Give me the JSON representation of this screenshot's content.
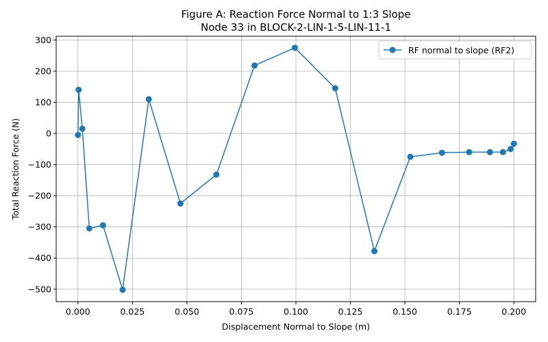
{
  "chart_data": {
    "type": "line",
    "title_line1": "Figure A: Reaction Force Normal to 1:3 Slope",
    "title_line2": "Node 33 in BLOCK-2-LIN-1-5-LIN-11-1",
    "xlabel": "Displacement Normal to Slope (m)",
    "ylabel": "Total Reaction Force (N)",
    "xlim": [
      -0.01,
      0.21
    ],
    "ylim": [
      -540,
      312
    ],
    "x_ticks": [
      0.0,
      0.025,
      0.05,
      0.075,
      0.1,
      0.125,
      0.15,
      0.175,
      0.2
    ],
    "x_tick_labels": [
      "0.000",
      "0.025",
      "0.050",
      "0.075",
      "0.100",
      "0.125",
      "0.150",
      "0.175",
      "0.200"
    ],
    "y_ticks": [
      -500,
      -400,
      -300,
      -200,
      -100,
      0,
      100,
      200,
      300
    ],
    "y_tick_labels": [
      "−500",
      "−400",
      "−300",
      "−200",
      "−100",
      "0",
      "100",
      "200",
      "300"
    ],
    "grid": true,
    "legend_position": "top-right",
    "color": "#1f77b4",
    "series": [
      {
        "name": "RF normal to slope (RF2)",
        "marker": "circle",
        "x": [
          0.0,
          0.0003,
          0.002,
          0.0052,
          0.0115,
          0.0205,
          0.0325,
          0.047,
          0.0635,
          0.081,
          0.0995,
          0.118,
          0.136,
          0.1525,
          0.167,
          0.1795,
          0.189,
          0.195,
          0.1985,
          0.2
        ],
        "y": [
          -5,
          140,
          15,
          -305,
          -295,
          -502,
          110,
          -225,
          -132,
          218,
          275,
          145,
          -378,
          -75,
          -62,
          -60,
          -60,
          -60,
          -50,
          -33
        ]
      }
    ]
  }
}
